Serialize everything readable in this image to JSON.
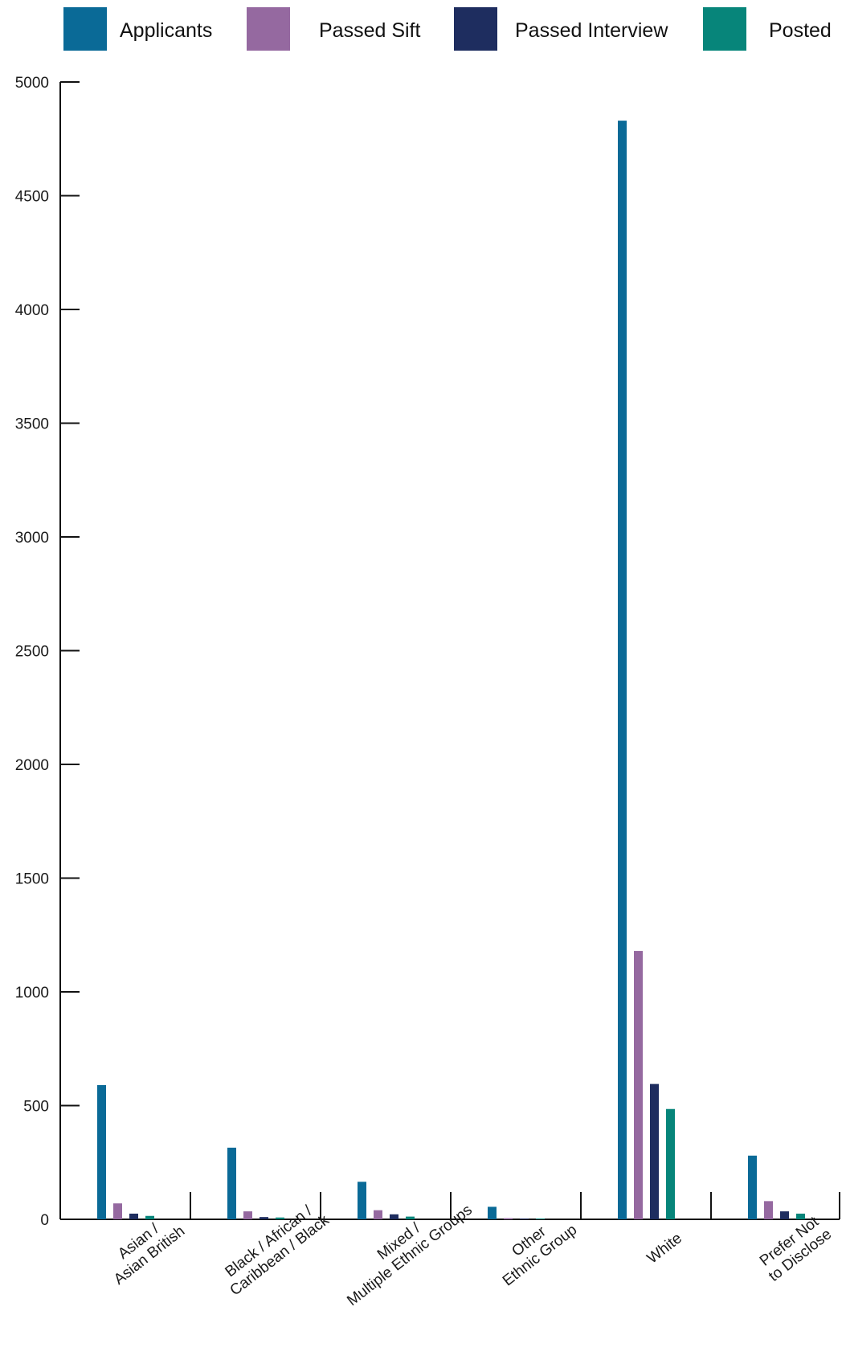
{
  "colors": {
    "applicants": "#0a6a97",
    "passed_sift": "#9569a0",
    "passed_interview": "#1e2d5f",
    "posted": "#07857a",
    "axis": "#111111"
  },
  "chart_data": {
    "type": "bar",
    "title": "",
    "xlabel": "",
    "ylabel": "",
    "ylim": [
      0,
      5000
    ],
    "yticks": [
      "0",
      "500",
      "1000",
      "1500",
      "2000",
      "2500",
      "3000",
      "3500",
      "4000",
      "4500",
      "5000"
    ],
    "grid": false,
    "legend_position": "top",
    "categories": [
      [
        "Asian /",
        "Asian British"
      ],
      [
        "Black / African /",
        "Caribbean / Black"
      ],
      [
        "Mixed /",
        "Multiple Ethnic Groups"
      ],
      [
        "Other",
        "Ethnic Group"
      ],
      [
        "White"
      ],
      [
        "Prefer Not",
        "to Disclose"
      ]
    ],
    "series": [
      {
        "name": "Applicants",
        "values": [
          590,
          315,
          165,
          55,
          4830,
          280
        ]
      },
      {
        "name": "Passed Sift",
        "values": [
          70,
          35,
          40,
          5,
          1180,
          80
        ]
      },
      {
        "name": "Passed Interview",
        "values": [
          25,
          10,
          22,
          3,
          595,
          35
        ]
      },
      {
        "name": "Posted",
        "values": [
          15,
          8,
          12,
          2,
          485,
          25
        ]
      }
    ]
  }
}
